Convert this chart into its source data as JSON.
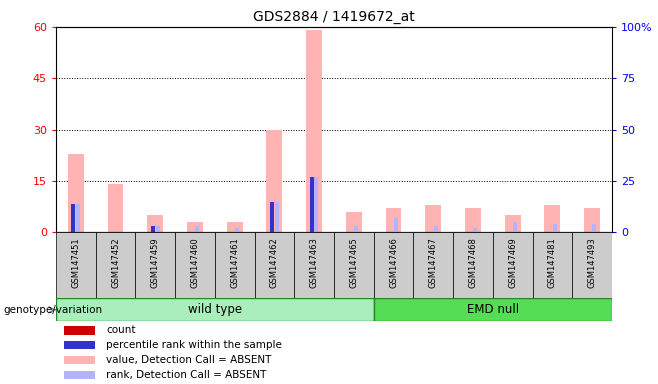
{
  "title": "GDS2884 / 1419672_at",
  "samples": [
    "GSM147451",
    "GSM147452",
    "GSM147459",
    "GSM147460",
    "GSM147461",
    "GSM147462",
    "GSM147463",
    "GSM147465",
    "GSM147466",
    "GSM147467",
    "GSM147468",
    "GSM147469",
    "GSM147481",
    "GSM147493"
  ],
  "n_wild_type": 8,
  "n_emd_null": 6,
  "count_values": [
    0,
    0,
    0,
    0,
    0,
    0,
    0,
    0,
    0,
    0,
    0,
    0,
    0,
    0
  ],
  "percentile_rank_values": [
    14,
    0,
    3,
    0,
    0,
    15,
    27,
    0,
    0,
    0,
    0,
    0,
    0,
    0
  ],
  "value_absent": [
    23,
    14,
    5,
    3,
    3,
    30,
    59,
    6,
    7,
    8,
    7,
    5,
    8,
    7
  ],
  "rank_absent": [
    14,
    0,
    3,
    3,
    2,
    15,
    27,
    3,
    7,
    3,
    2,
    5,
    4,
    4
  ],
  "ylim_left": [
    0,
    60
  ],
  "ylim_right": [
    0,
    100
  ],
  "yticks_left": [
    0,
    15,
    30,
    45,
    60
  ],
  "yticks_right": [
    0,
    25,
    50,
    75,
    100
  ],
  "ytick_labels_right": [
    "0",
    "25",
    "50",
    "75",
    "100%"
  ],
  "colors": {
    "count": "#cc0000",
    "percentile_rank": "#3333cc",
    "value_absent": "#ffb3b3",
    "rank_absent": "#b3b3ff"
  },
  "group_colors": {
    "wild type": "#aaeebb",
    "EMD null": "#55dd55"
  },
  "legend_items": [
    {
      "label": "count",
      "color": "#cc0000"
    },
    {
      "label": "percentile rank within the sample",
      "color": "#3333cc"
    },
    {
      "label": "value, Detection Call = ABSENT",
      "color": "#ffb3b3"
    },
    {
      "label": "rank, Detection Call = ABSENT",
      "color": "#b3b3ff"
    }
  ]
}
